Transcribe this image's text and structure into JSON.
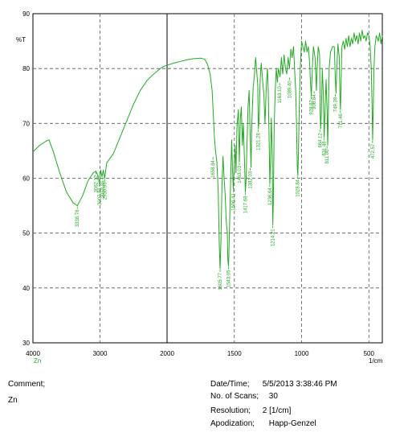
{
  "chart_data": {
    "type": "line",
    "title": "",
    "xlabel": "1/cm",
    "ylabel": "%T",
    "xlim": [
      4000,
      400
    ],
    "ylim": [
      30,
      90
    ],
    "x_ticks": [
      "4000",
      "3000",
      "2000",
      "1500",
      "1000",
      "500"
    ],
    "y_ticks": [
      "30",
      "40",
      "50",
      "60",
      "70",
      "80",
      "90"
    ],
    "sample_label": "Zn",
    "grid": "dashed",
    "series": [
      {
        "color": "#22aa22",
        "points": [
          [
            4000,
            64.8
          ],
          [
            3900,
            66.0
          ],
          [
            3800,
            66.8
          ],
          [
            3760,
            67.0
          ],
          [
            3700,
            65.0
          ],
          [
            3600,
            61.0
          ],
          [
            3500,
            57.5
          ],
          [
            3400,
            55.5
          ],
          [
            3338,
            55.0
          ],
          [
            3260,
            56.8
          ],
          [
            3180,
            59.5
          ],
          [
            3100,
            61.0
          ],
          [
            3062,
            61.3
          ],
          [
            3030,
            60.5
          ],
          [
            3008,
            59.0
          ],
          [
            2990,
            61.5
          ],
          [
            2970,
            60.3
          ],
          [
            2950,
            61.5
          ],
          [
            2930,
            60.0
          ],
          [
            2900,
            62.8
          ],
          [
            2800,
            64.5
          ],
          [
            2700,
            67.5
          ],
          [
            2600,
            70.5
          ],
          [
            2500,
            73.5
          ],
          [
            2400,
            76.0
          ],
          [
            2300,
            77.8
          ],
          [
            2200,
            79.0
          ],
          [
            2100,
            80.0
          ],
          [
            2050,
            80.4
          ],
          [
            2000,
            80.6
          ],
          [
            1950,
            81.0
          ],
          [
            1900,
            81.3
          ],
          [
            1850,
            81.6
          ],
          [
            1800,
            81.8
          ],
          [
            1750,
            81.9
          ],
          [
            1720,
            81.7
          ],
          [
            1700,
            80.8
          ],
          [
            1680,
            79.0
          ],
          [
            1665,
            76.0
          ],
          [
            1655,
            71.0
          ],
          [
            1648,
            67.5
          ],
          [
            1640,
            65.0
          ],
          [
            1630,
            63.0
          ],
          [
            1620,
            58.0
          ],
          [
            1612,
            48.0
          ],
          [
            1606,
            43.5
          ],
          [
            1600,
            48.0
          ],
          [
            1592,
            58.5
          ],
          [
            1584,
            64.0
          ],
          [
            1576,
            60.0
          ],
          [
            1568,
            57.0
          ],
          [
            1560,
            52.0
          ],
          [
            1552,
            50.0
          ],
          [
            1548,
            45.0
          ],
          [
            1543,
            44.0
          ],
          [
            1538,
            48.5
          ],
          [
            1532,
            55.0
          ],
          [
            1526,
            61.0
          ],
          [
            1520,
            67.0
          ],
          [
            1514,
            62.0
          ],
          [
            1508,
            58.0
          ],
          [
            1500,
            62.5
          ],
          [
            1494,
            66.0
          ],
          [
            1488,
            61.0
          ],
          [
            1480,
            69.5
          ],
          [
            1470,
            72.5
          ],
          [
            1463,
            63.0
          ],
          [
            1455,
            71.0
          ],
          [
            1448,
            73.0
          ],
          [
            1440,
            66.0
          ],
          [
            1433,
            70.0
          ],
          [
            1426,
            64.5
          ],
          [
            1418,
            57.5
          ],
          [
            1412,
            60.0
          ],
          [
            1405,
            67.0
          ],
          [
            1398,
            73.0
          ],
          [
            1390,
            76.0
          ],
          [
            1382,
            68.0
          ],
          [
            1376,
            62.0
          ],
          [
            1370,
            70.0
          ],
          [
            1360,
            76.5
          ],
          [
            1350,
            79.0
          ],
          [
            1342,
            82.0
          ],
          [
            1335,
            80.0
          ],
          [
            1326,
            77.0
          ],
          [
            1321,
            69.0
          ],
          [
            1315,
            71.0
          ],
          [
            1308,
            78.0
          ],
          [
            1300,
            81.0
          ],
          [
            1290,
            78.0
          ],
          [
            1280,
            75.0
          ],
          [
            1272,
            70.0
          ],
          [
            1262,
            77.0
          ],
          [
            1254,
            80.0
          ],
          [
            1248,
            76.0
          ],
          [
            1240,
            65.0
          ],
          [
            1236,
            59.0
          ],
          [
            1231,
            63.0
          ],
          [
            1225,
            71.0
          ],
          [
            1218,
            64.0
          ],
          [
            1214,
            51.5
          ],
          [
            1210,
            56.0
          ],
          [
            1204,
            69.0
          ],
          [
            1196,
            76.0
          ],
          [
            1188,
            80.0
          ],
          [
            1180,
            77.5
          ],
          [
            1172,
            80.0
          ],
          [
            1160,
            78.5
          ],
          [
            1150,
            82.0
          ],
          [
            1140,
            79.0
          ],
          [
            1130,
            82.5
          ],
          [
            1120,
            80.0
          ],
          [
            1110,
            79.0
          ],
          [
            1100,
            82.0
          ],
          [
            1090,
            80.0
          ],
          [
            1080,
            83.5
          ],
          [
            1070,
            82.0
          ],
          [
            1060,
            84.0
          ],
          [
            1052,
            80.0
          ],
          [
            1044,
            76.0
          ],
          [
            1038,
            70.0
          ],
          [
            1032,
            62.0
          ],
          [
            1028,
            60.5
          ],
          [
            1024,
            64.0
          ],
          [
            1018,
            72.0
          ],
          [
            1010,
            80.0
          ],
          [
            1000,
            85.0
          ],
          [
            990,
            84.0
          ],
          [
            980,
            83.0
          ],
          [
            970,
            85.0
          ],
          [
            960,
            83.0
          ],
          [
            950,
            84.0
          ],
          [
            940,
            81.0
          ],
          [
            935,
            78.0
          ],
          [
            928,
            75.0
          ],
          [
            920,
            80.0
          ],
          [
            912,
            84.0
          ],
          [
            900,
            82.0
          ],
          [
            890,
            76.0
          ],
          [
            885,
            80.0
          ],
          [
            876,
            84.0
          ],
          [
            866,
            82.5
          ],
          [
            862,
            72.0
          ],
          [
            858,
            69.0
          ],
          [
            853,
            72.0
          ],
          [
            846,
            80.0
          ],
          [
            838,
            75.0
          ],
          [
            832,
            67.5
          ],
          [
            826,
            72.0
          ],
          [
            818,
            78.0
          ],
          [
            810,
            72.0
          ],
          [
            806,
            66.0
          ],
          [
            802,
            71.0
          ],
          [
            795,
            80.0
          ],
          [
            785,
            83.0
          ],
          [
            770,
            84.0
          ],
          [
            757,
            84.0
          ],
          [
            749,
            78.0
          ],
          [
            744,
            75.5
          ],
          [
            738,
            80.0
          ],
          [
            730,
            84.5
          ],
          [
            720,
            82.0
          ],
          [
            715,
            75.0
          ],
          [
            711,
            72.5
          ],
          [
            706,
            78.0
          ],
          [
            700,
            84.0
          ],
          [
            690,
            85.0
          ],
          [
            680,
            83.5
          ],
          [
            670,
            85.5
          ],
          [
            660,
            84.0
          ],
          [
            650,
            86.0
          ],
          [
            640,
            84.0
          ],
          [
            630,
            85.5
          ],
          [
            620,
            84.5
          ],
          [
            610,
            86.5
          ],
          [
            600,
            85.0
          ],
          [
            590,
            86.0
          ],
          [
            580,
            84.5
          ],
          [
            570,
            86.5
          ],
          [
            560,
            85.0
          ],
          [
            550,
            87.0
          ],
          [
            540,
            85.5
          ],
          [
            530,
            86.0
          ],
          [
            520,
            85.0
          ],
          [
            510,
            86.5
          ],
          [
            500,
            86.0
          ],
          [
            490,
            84.0
          ],
          [
            482,
            80.0
          ],
          [
            476,
            73.0
          ],
          [
            472,
            67.0
          ],
          [
            468,
            72.0
          ],
          [
            462,
            80.0
          ],
          [
            455,
            84.0
          ],
          [
            445,
            86.0
          ],
          [
            430,
            85.0
          ],
          [
            420,
            86.5
          ],
          [
            410,
            84.5
          ],
          [
            400,
            86.0
          ]
        ]
      }
    ],
    "peak_labels": [
      {
        "x": 3338.78,
        "y": 55.0,
        "label": "3338.78"
      },
      {
        "x": 3062.12,
        "y": 61.3,
        "label": "3062.12"
      },
      {
        "x": 3007.81,
        "y": 59.0,
        "label": "3007.81"
      },
      {
        "x": 2958.85,
        "y": 60.3,
        "label": "2958.85"
      },
      {
        "x": 2930.93,
        "y": 60.0,
        "label": "2930.93"
      },
      {
        "x": 1658.84,
        "y": 64.0,
        "label": "1658.84"
      },
      {
        "x": 1605.77,
        "y": 43.5,
        "label": "1605.77"
      },
      {
        "x": 1543.05,
        "y": 44.0,
        "label": "1543.05"
      },
      {
        "x": 1506.41,
        "y": 58.0,
        "label": "1506.41"
      },
      {
        "x": 1463.03,
        "y": 63.0,
        "label": "1463.03"
      },
      {
        "x": 1417.68,
        "y": 57.5,
        "label": "1417.68"
      },
      {
        "x": 1382.03,
        "y": 62.0,
        "label": "1382.03"
      },
      {
        "x": 1321.28,
        "y": 69.0,
        "label": "1321.28"
      },
      {
        "x": 1236.64,
        "y": 59.0,
        "label": "1236.64"
      },
      {
        "x": 1214.21,
        "y": 51.5,
        "label": "1214.21"
      },
      {
        "x": 1163.1,
        "y": 77.5,
        "label": "1163.10"
      },
      {
        "x": 1089.4,
        "y": 78.5,
        "label": "1089.40"
      },
      {
        "x": 1028.84,
        "y": 60.5,
        "label": "1028.84"
      },
      {
        "x": 928.82,
        "y": 75.0,
        "label": "928.82"
      },
      {
        "x": 906.84,
        "y": 76.0,
        "label": "906.84"
      },
      {
        "x": 864.12,
        "y": 69.0,
        "label": "864.12"
      },
      {
        "x": 831.48,
        "y": 67.5,
        "label": "831.48"
      },
      {
        "x": 811.0,
        "y": 66.0,
        "label": "811.00"
      },
      {
        "x": 749.39,
        "y": 75.5,
        "label": "749.39"
      },
      {
        "x": 711.46,
        "y": 72.5,
        "label": "711.46"
      },
      {
        "x": 472.57,
        "y": 67.0,
        "label": "472.57"
      }
    ]
  },
  "footer": {
    "comment_label": "Comment;",
    "comment_value": "Zn",
    "datetime_label": "Date/Time;",
    "datetime_value": "5/5/2013 3:38:46 PM",
    "scans_label": "No. of Scans;",
    "scans_value": "30",
    "resolution_label": "Resolution;",
    "resolution_value": "2 [1/cm]",
    "apodization_label": "Apodization;",
    "apodization_value": "Happ-Genzel"
  }
}
